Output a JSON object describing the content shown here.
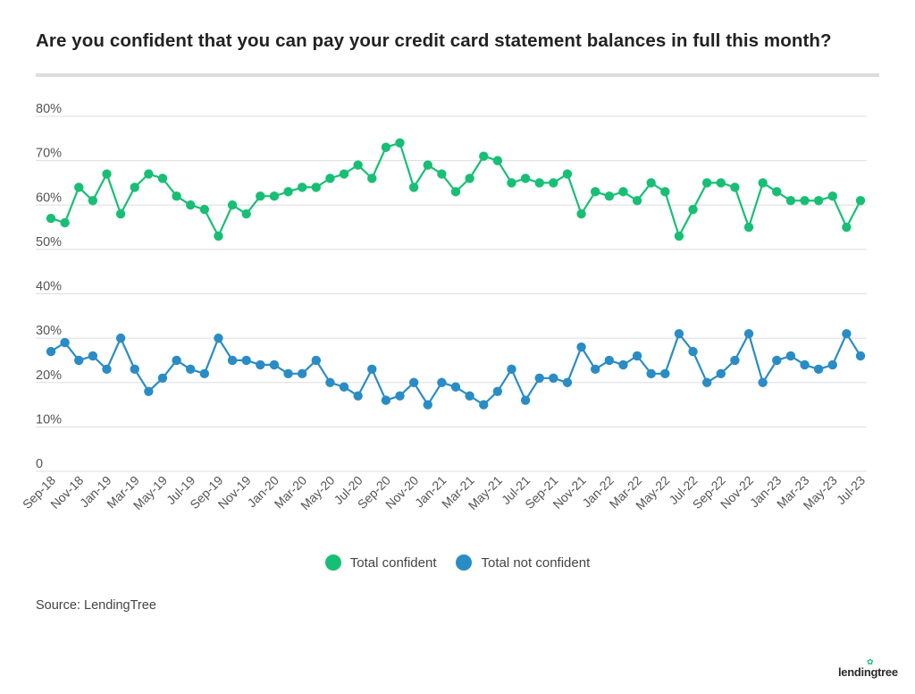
{
  "title": "Are you confident that you can pay your credit card statement balances in full this month?",
  "source": "Source: LendingTree",
  "logo_text": "lendingtree",
  "colors": {
    "confident": "#17bf75",
    "not_confident": "#2a8cc4",
    "grid": "#dddddd",
    "axis_text": "#555555"
  },
  "chart_data": {
    "type": "line",
    "x_tick_labels": [
      "Sep-18",
      "Nov-18",
      "Jan-19",
      "Mar-19",
      "May-19",
      "Jul-19",
      "Sep-19",
      "Nov-19",
      "Jan-20",
      "Mar-20",
      "May-20",
      "Jul-20",
      "Sep-20",
      "Nov-20",
      "Jan-21",
      "Mar-21",
      "May-21",
      "Jul-21",
      "Sep-21",
      "Nov-21",
      "Jan-22",
      "Mar-22",
      "May-22",
      "Jul-22",
      "Sep-22",
      "Nov-22",
      "Jan-23",
      "Mar-23",
      "May-23",
      "Jul-23"
    ],
    "y_tick_labels": [
      "0",
      "10%",
      "20%",
      "30%",
      "40%",
      "50%",
      "60%",
      "70%",
      "80%"
    ],
    "ylim": [
      0,
      80
    ],
    "grid": true,
    "legend_position": "bottom-center",
    "x": [
      "Sep-18",
      "Oct-18",
      "Nov-18",
      "Dec-18",
      "Jan-19",
      "Feb-19",
      "Mar-19",
      "Apr-19",
      "May-19",
      "Jun-19",
      "Jul-19",
      "Aug-19",
      "Sep-19",
      "Oct-19",
      "Nov-19",
      "Dec-19",
      "Jan-20",
      "Feb-20",
      "Mar-20",
      "Apr-20",
      "May-20",
      "Jun-20",
      "Jul-20",
      "Aug-20",
      "Sep-20",
      "Oct-20",
      "Nov-20",
      "Dec-20",
      "Jan-21",
      "Feb-21",
      "Mar-21",
      "Apr-21",
      "May-21",
      "Jun-21",
      "Jul-21",
      "Aug-21",
      "Sep-21",
      "Oct-21",
      "Nov-21",
      "Dec-21",
      "Jan-22",
      "Feb-22",
      "Mar-22",
      "Apr-22",
      "May-22",
      "Jun-22",
      "Jul-22",
      "Aug-22",
      "Sep-22",
      "Oct-22",
      "Nov-22",
      "Dec-22",
      "Jan-23",
      "Feb-23",
      "Mar-23",
      "Apr-23",
      "May-23",
      "Jun-23",
      "Jul-23"
    ],
    "series": [
      {
        "name": "Total confident",
        "values": [
          57,
          56,
          64,
          61,
          67,
          58,
          64,
          67,
          66,
          62,
          60,
          59,
          53,
          60,
          58,
          62,
          62,
          63,
          64,
          64,
          66,
          67,
          69,
          66,
          73,
          74,
          64,
          69,
          67,
          63,
          66,
          71,
          70,
          65,
          66,
          65,
          65,
          67,
          58,
          63,
          62,
          63,
          61,
          65,
          63,
          53,
          59,
          65,
          65,
          64,
          55,
          65,
          63,
          61,
          61,
          61,
          62,
          55,
          61
        ]
      },
      {
        "name": "Total not confident",
        "values": [
          27,
          29,
          25,
          26,
          23,
          30,
          23,
          18,
          21,
          25,
          23,
          22,
          30,
          25,
          25,
          24,
          24,
          22,
          22,
          25,
          20,
          19,
          17,
          23,
          16,
          17,
          20,
          15,
          20,
          19,
          17,
          15,
          18,
          23,
          16,
          21,
          21,
          20,
          28,
          23,
          25,
          24,
          26,
          22,
          22,
          31,
          27,
          20,
          22,
          25,
          31,
          20,
          25,
          26,
          24,
          23,
          24,
          31,
          26
        ]
      }
    ]
  }
}
